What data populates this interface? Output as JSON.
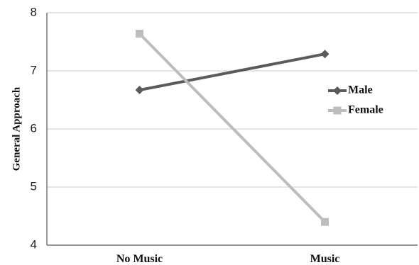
{
  "chart_data": {
    "type": "line",
    "categories": [
      "No Music",
      "Music"
    ],
    "series": [
      {
        "name": "Male",
        "values": [
          6.67,
          7.29
        ],
        "color": "#5a5a5a",
        "marker": "diamond"
      },
      {
        "name": "Female",
        "values": [
          7.64,
          4.4
        ],
        "color": "#bdbdbd",
        "marker": "square"
      }
    ],
    "ylabel": "General Approach",
    "xlabel": "",
    "ylim": [
      4,
      8
    ],
    "yticks": [
      4,
      5,
      6,
      7,
      8
    ],
    "grid": true,
    "legend_position": "right"
  }
}
